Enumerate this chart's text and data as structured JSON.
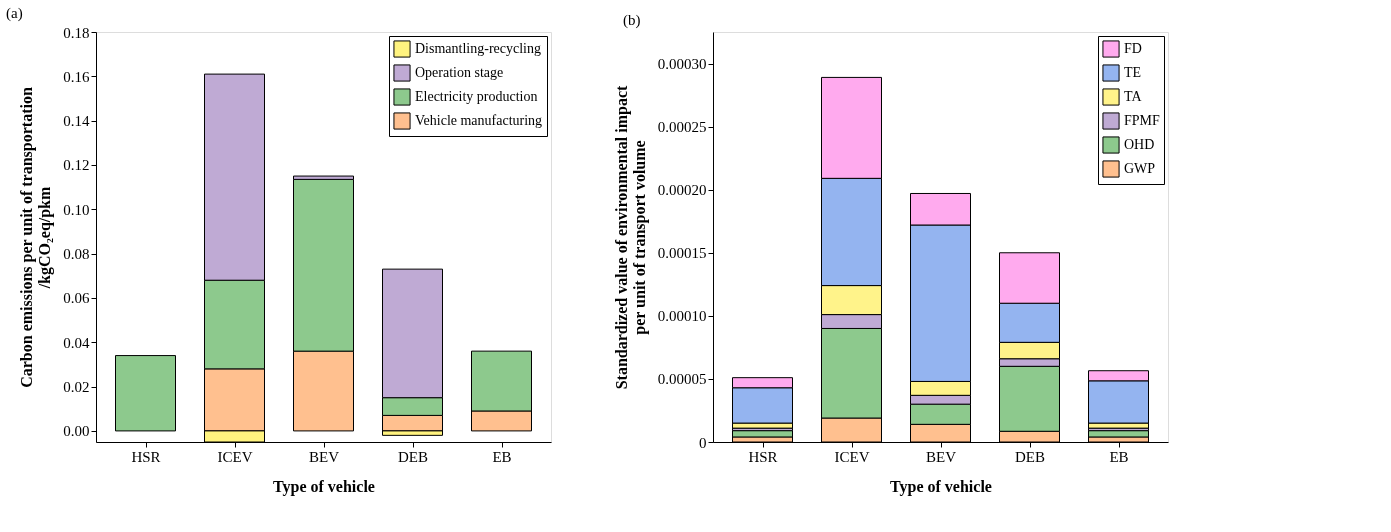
{
  "chart_data": [
    {
      "type": "bar",
      "stacked": true,
      "title": "(a)",
      "xlabel": "Type of vehicle",
      "ylabel": "Carbon emissions per unit of transportation\n/kgCO₂eq/pkm",
      "categories": [
        "HSR",
        "ICEV",
        "BEV",
        "DEB",
        "EB"
      ],
      "ylim": [
        -0.005,
        0.18
      ],
      "yticks": [
        {
          "value": 0,
          "label": "0.00"
        },
        {
          "value": 0.02,
          "label": "0.02"
        },
        {
          "value": 0.04,
          "label": "0.04"
        },
        {
          "value": 0.06,
          "label": "0.06"
        },
        {
          "value": 0.08,
          "label": "0.08"
        },
        {
          "value": 0.1,
          "label": "0.10"
        },
        {
          "value": 0.12,
          "label": "0.12"
        },
        {
          "value": 0.14,
          "label": "0.14"
        },
        {
          "value": 0.16,
          "label": "0.16"
        },
        {
          "value": 0.18,
          "label": "0.18"
        }
      ],
      "grid": false,
      "legend": "top right",
      "series": [
        {
          "name": "Vehicle manufacturing",
          "color": "#ffc08f",
          "values": [
            null,
            0.028,
            0.036,
            0.007,
            0.009
          ]
        },
        {
          "name": "Electricity production",
          "color": "#8dc98d",
          "values": [
            0.034,
            0.04,
            0.0775,
            0.008,
            0.027
          ]
        },
        {
          "name": "Operation stage",
          "color": "#bfaad4",
          "values": [
            null,
            0.093,
            0.0015,
            0.058,
            null
          ]
        },
        {
          "name": "Dismantling-recycling",
          "color": "#fff37f",
          "values": [
            null,
            -0.005,
            null,
            -0.002,
            null
          ]
        }
      ]
    },
    {
      "type": "bar",
      "stacked": true,
      "title": "(b)",
      "xlabel": "Type of vehicle",
      "ylabel": "Standardized value of environmental impact\nper unit of transport volume",
      "categories": [
        "HSR",
        "ICEV",
        "BEV",
        "DEB",
        "EB"
      ],
      "ylim": [
        0,
        0.000325
      ],
      "yticks": [
        {
          "value": 0,
          "label": "0"
        },
        {
          "value": 5e-05,
          "label": "0.00005"
        },
        {
          "value": 0.0001,
          "label": "0.00010"
        },
        {
          "value": 0.00015,
          "label": "0.00015"
        },
        {
          "value": 0.0002,
          "label": "0.00020"
        },
        {
          "value": 0.00025,
          "label": "0.00025"
        },
        {
          "value": 0.0003,
          "label": "0.00030"
        }
      ],
      "grid": false,
      "legend": "top right",
      "series": [
        {
          "name": "GWP",
          "color": "#ffc08f",
          "values": [
            4e-06,
            1.9e-05,
            1.4e-05,
            8.5e-06,
            4e-06
          ]
        },
        {
          "name": "OHD",
          "color": "#8dc98d",
          "values": [
            5e-06,
            7.1e-05,
            1.6e-05,
            5.15e-05,
            5e-06
          ]
        },
        {
          "name": "FPMF",
          "color": "#bfaad4",
          "values": [
            2e-06,
            1.1e-05,
            7e-06,
            6e-06,
            2e-06
          ]
        },
        {
          "name": "TA",
          "color": "#fff38a",
          "values": [
            4e-06,
            2.3e-05,
            1.1e-05,
            1.3e-05,
            4e-06
          ]
        },
        {
          "name": "TE",
          "color": "#94b4f0",
          "values": [
            2.8e-05,
            8.5e-05,
            0.000124,
            3.1e-05,
            3.35e-05
          ]
        },
        {
          "name": "FD",
          "color": "#ffaaee",
          "values": [
            8e-06,
            8e-05,
            2.5e-05,
            4e-05,
            8e-06
          ]
        }
      ]
    }
  ]
}
